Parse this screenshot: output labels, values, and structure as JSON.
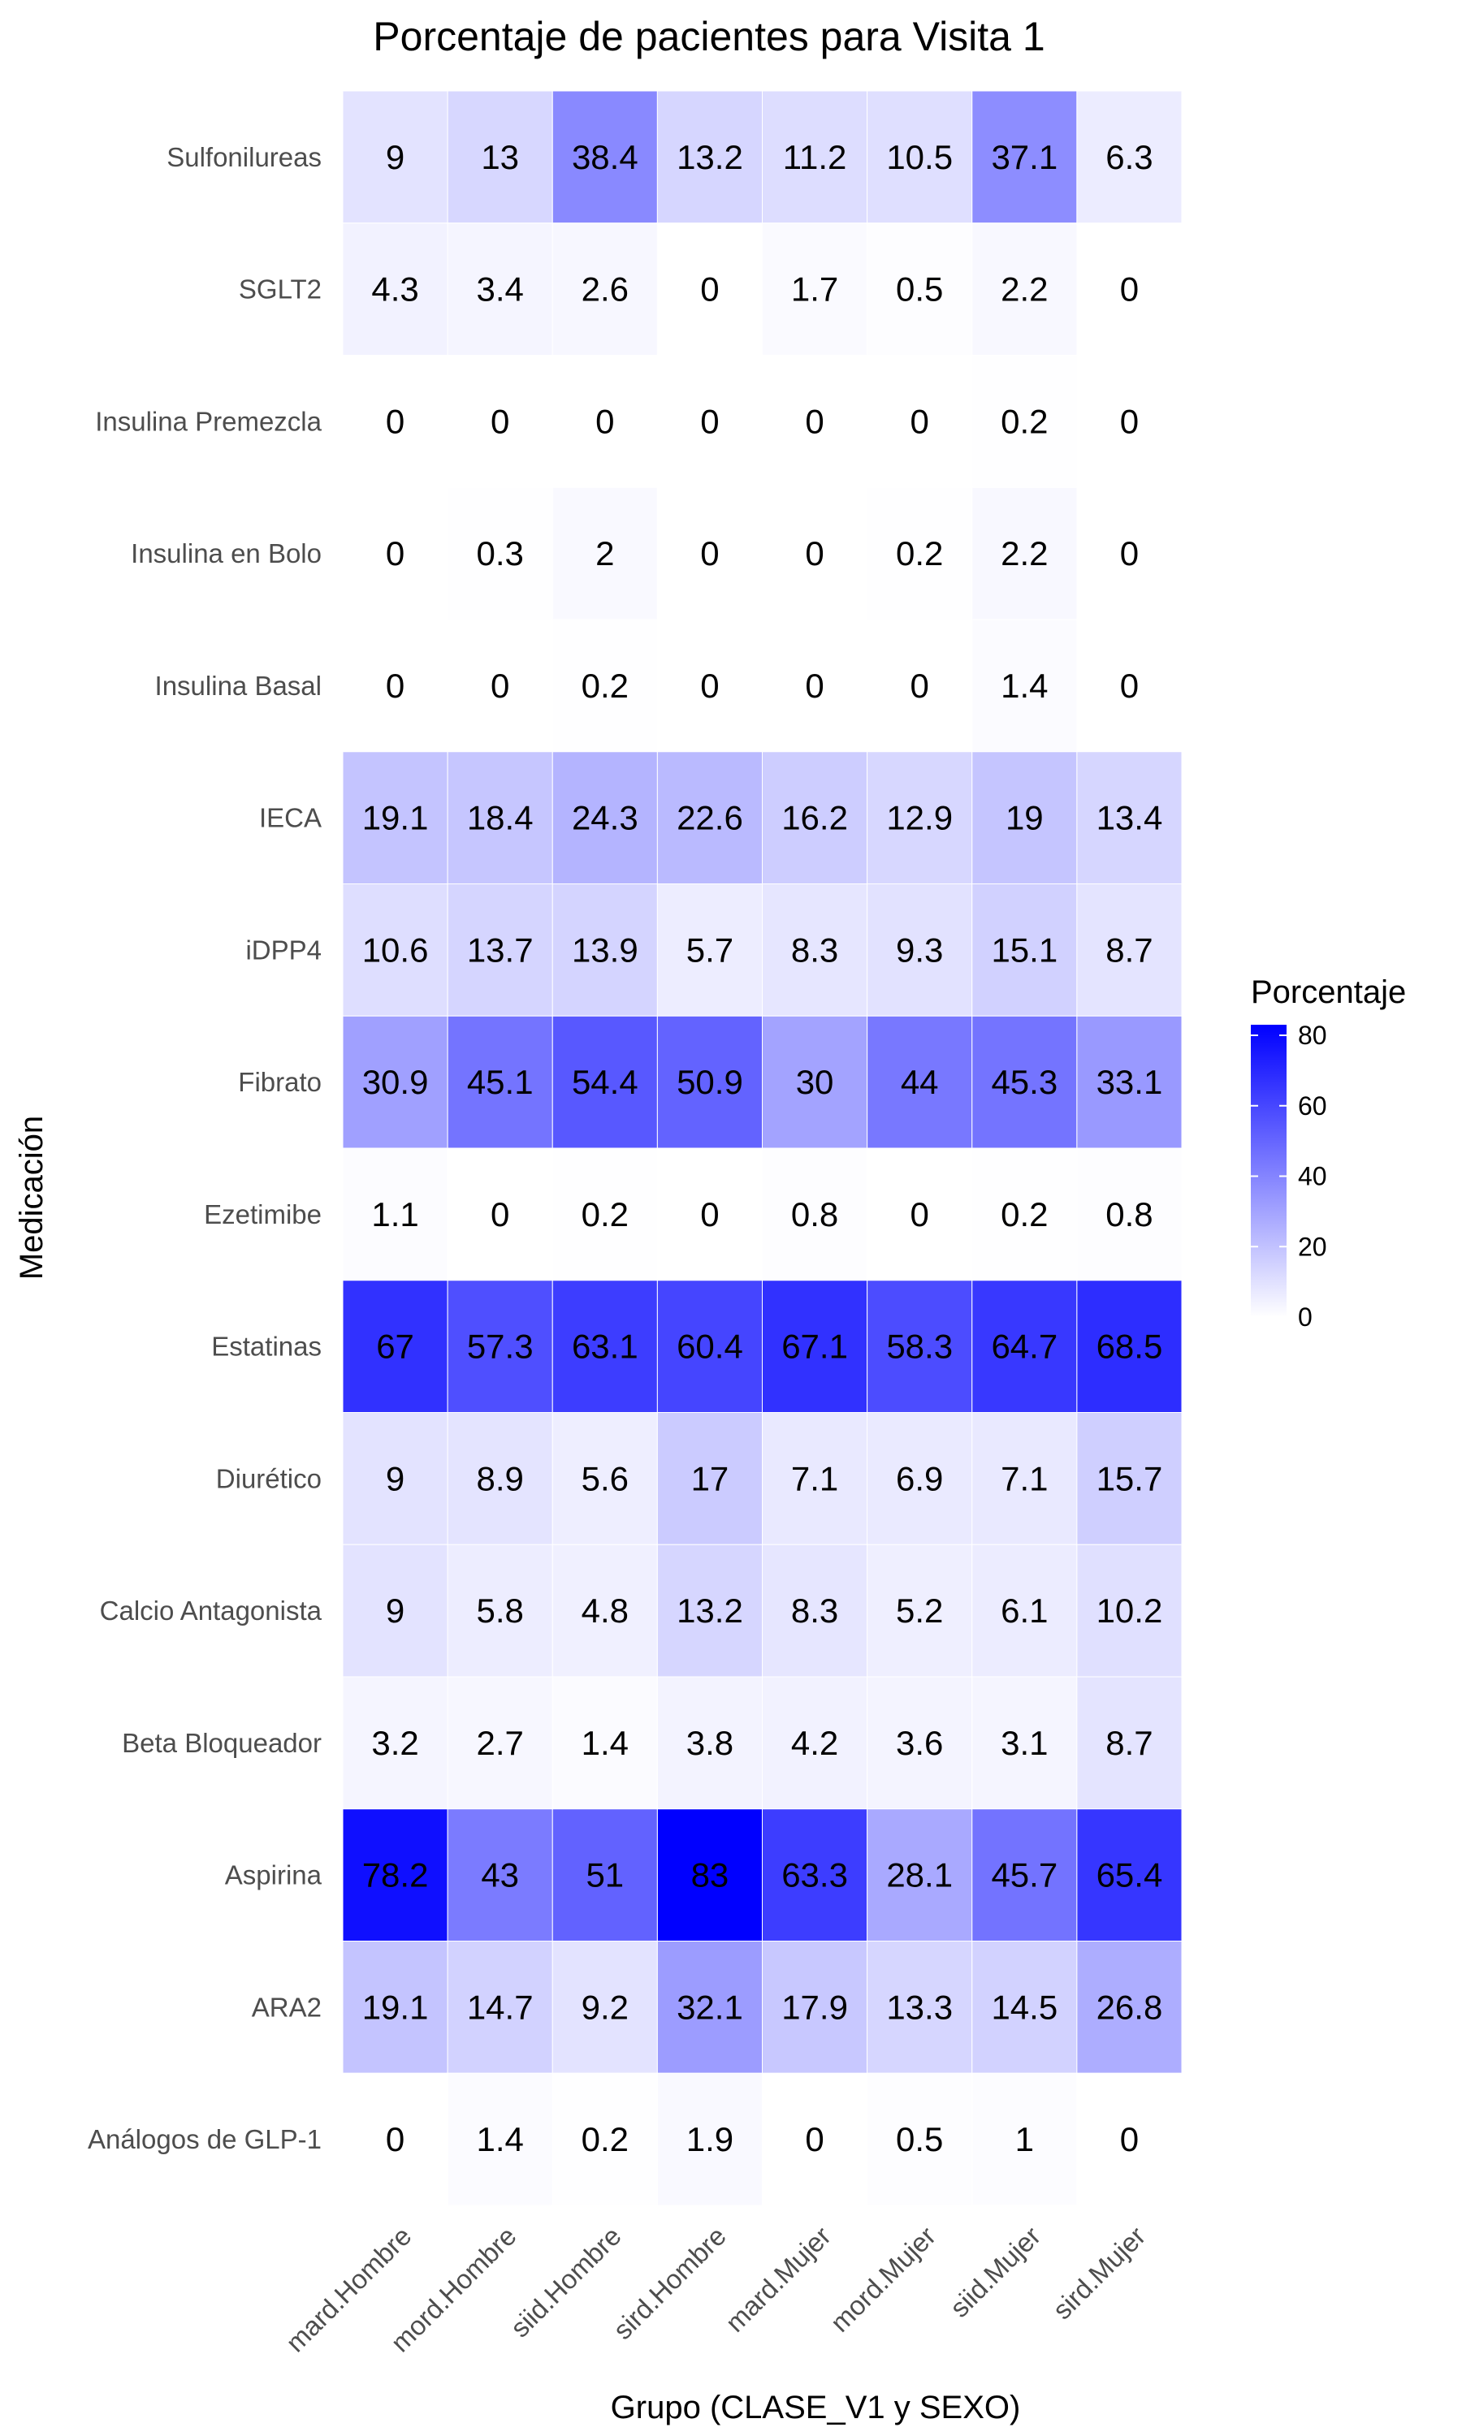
{
  "chart_data": {
    "type": "heatmap",
    "title": "Porcentaje de pacientes para Visita 1",
    "xlabel": "Grupo (CLASE_V1 y SEXO)",
    "ylabel": "Medicación",
    "columns": [
      "mard.Hombre",
      "mord.Hombre",
      "siid.Hombre",
      "sird.Hombre",
      "mard.Mujer",
      "mord.Mujer",
      "siid.Mujer",
      "sird.Mujer"
    ],
    "rows": [
      "Sulfonilureas",
      "SGLT2",
      "Insulina Premezcla",
      "Insulina en Bolo",
      "Insulina Basal",
      "IECA",
      "iDPP4",
      "Fibrato",
      "Ezetimibe",
      "Estatinas",
      "Diurético",
      "Calcio Antagonista",
      "Beta Bloqueador",
      "Aspirina",
      "ARA2",
      "Análogos de GLP-1"
    ],
    "values": [
      [
        9,
        13,
        38.4,
        13.2,
        11.2,
        10.5,
        37.1,
        6.3
      ],
      [
        4.3,
        3.4,
        2.6,
        0,
        1.7,
        0.5,
        2.2,
        0
      ],
      [
        0,
        0,
        0,
        0,
        0,
        0,
        0.2,
        0
      ],
      [
        0,
        0.3,
        2,
        0,
        0,
        0.2,
        2.2,
        0
      ],
      [
        0,
        0,
        0.2,
        0,
        0,
        0,
        1.4,
        0
      ],
      [
        19.1,
        18.4,
        24.3,
        22.6,
        16.2,
        12.9,
        19,
        13.4
      ],
      [
        10.6,
        13.7,
        13.9,
        5.7,
        8.3,
        9.3,
        15.1,
        8.7
      ],
      [
        30.9,
        45.1,
        54.4,
        50.9,
        30,
        44,
        45.3,
        33.1
      ],
      [
        1.1,
        0,
        0.2,
        0,
        0.8,
        0,
        0.2,
        0.8
      ],
      [
        67,
        57.3,
        63.1,
        60.4,
        67.1,
        58.3,
        64.7,
        68.5
      ],
      [
        9,
        8.9,
        5.6,
        17,
        7.1,
        6.9,
        7.1,
        15.7
      ],
      [
        9,
        5.8,
        4.8,
        13.2,
        8.3,
        5.2,
        6.1,
        10.2
      ],
      [
        3.2,
        2.7,
        1.4,
        3.8,
        4.2,
        3.6,
        3.1,
        8.7
      ],
      [
        78.2,
        43,
        51,
        83,
        63.3,
        28.1,
        45.7,
        65.4
      ],
      [
        19.1,
        14.7,
        9.2,
        32.1,
        17.9,
        13.3,
        14.5,
        26.8
      ],
      [
        0,
        1.4,
        0.2,
        1.9,
        0,
        0.5,
        1,
        0
      ]
    ],
    "color_scale": {
      "low": "#ffffff",
      "high": "#0000ff",
      "min": 0,
      "max": 83
    },
    "legend": {
      "title": "Porcentaje",
      "ticks": [
        "0",
        "20",
        "40",
        "60",
        "80"
      ],
      "position": "right"
    },
    "grid": false
  }
}
